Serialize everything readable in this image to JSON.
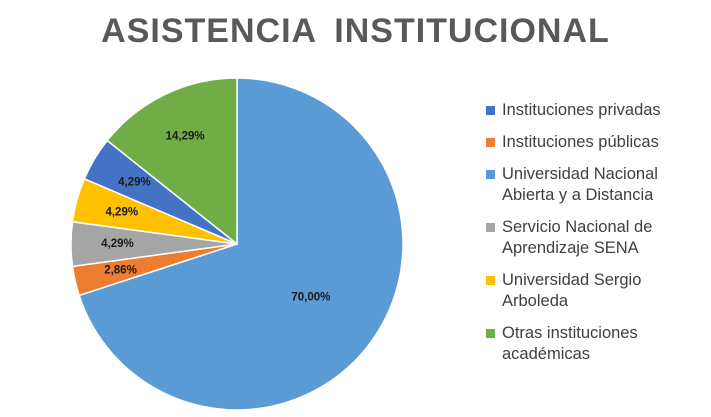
{
  "chart_data": {
    "type": "pie",
    "title": "ASISTENCIA  INSTITUCIONAL",
    "slices": [
      {
        "name": "Universidad Nacional Abierta y a Distancia",
        "value": 70.0,
        "label": "70,00%",
        "color": "#5B9BD5"
      },
      {
        "name": "Instituciones públicas",
        "value": 2.86,
        "label": "2,86%",
        "color": "#ED7D31"
      },
      {
        "name": "Servicio Nacional de Aprendizaje SENA",
        "value": 4.29,
        "label": "4,29%",
        "color": "#A5A5A5"
      },
      {
        "name": "Universidad Sergio Arboleda",
        "value": 4.29,
        "label": "4,29%",
        "color": "#FFC000"
      },
      {
        "name": "Instituciones privadas",
        "value": 4.29,
        "label": "4,29%",
        "color": "#4472C4"
      },
      {
        "name": "Otras instituciones académicas",
        "value": 14.29,
        "label": "14,29%",
        "color": "#70AD47"
      }
    ],
    "legend": {
      "position": "right",
      "items": [
        {
          "label": "Instituciones privadas",
          "color": "#4472C4"
        },
        {
          "label": "Instituciones públicas",
          "color": "#ED7D31"
        },
        {
          "label": "Universidad Nacional Abierta y a Distancia",
          "color": "#5B9BD5"
        },
        {
          "label": "Servicio Nacional de Aprendizaje SENA",
          "color": "#A5A5A5"
        },
        {
          "label": "Universidad Sergio Arboleda",
          "color": "#FFC000"
        },
        {
          "label": "Otras instituciones académicas",
          "color": "#70AD47"
        }
      ]
    }
  }
}
